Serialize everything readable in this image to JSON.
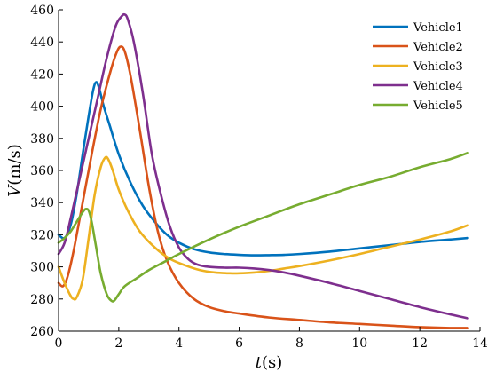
{
  "chart_data": {
    "type": "line",
    "xlabel_italic": "t",
    "xlabel_unit": "(s)",
    "ylabel_italic": "V",
    "ylabel_unit": "(m/s)",
    "xlim": [
      0,
      14
    ],
    "ylim": [
      260,
      460
    ],
    "xticks": [
      0,
      2,
      4,
      6,
      8,
      10,
      12,
      14
    ],
    "yticks": [
      260,
      280,
      300,
      320,
      340,
      360,
      380,
      400,
      420,
      440,
      460
    ],
    "grid": false,
    "legend_position": "top-right",
    "series": [
      {
        "name": "Vehicle1",
        "color": "#0072BD",
        "x": [
          0,
          0.2,
          0.4,
          0.6,
          0.8,
          1.0,
          1.15,
          1.25,
          1.35,
          1.5,
          1.7,
          2.0,
          2.4,
          2.8,
          3.2,
          3.6,
          4.0,
          4.5,
          5.0,
          5.5,
          6.0,
          6.5,
          7.0,
          7.5,
          8.0,
          9.0,
          10.0,
          11.0,
          12.0,
          13.0,
          13.6
        ],
        "y": [
          320,
          318,
          326,
          345,
          370,
          394,
          410,
          415,
          411,
          400,
          388,
          370,
          352,
          338,
          328,
          320,
          315,
          311,
          309,
          308,
          307.5,
          307.2,
          307.3,
          307.5,
          308,
          309.5,
          311.5,
          313.5,
          315.5,
          317,
          318
        ]
      },
      {
        "name": "Vehicle2",
        "color": "#D95319",
        "x": [
          0,
          0.15,
          0.3,
          0.5,
          0.8,
          1.1,
          1.4,
          1.7,
          1.9,
          2.05,
          2.2,
          2.4,
          2.7,
          3.0,
          3.3,
          3.6,
          4.0,
          4.5,
          5.0,
          5.5,
          6.0,
          7.0,
          8.0,
          9.0,
          10.0,
          11.0,
          12.0,
          13.0,
          13.6
        ],
        "y": [
          290,
          288,
          294,
          310,
          340,
          370,
          398,
          420,
          432,
          437,
          434,
          418,
          385,
          350,
          322,
          304,
          290,
          280,
          275,
          272.5,
          271,
          268.5,
          267,
          265.5,
          264.5,
          263.5,
          262.5,
          262,
          262
        ]
      },
      {
        "name": "Vehicle3",
        "color": "#EDB120",
        "x": [
          0,
          0.2,
          0.4,
          0.5,
          0.6,
          0.8,
          1.0,
          1.2,
          1.4,
          1.55,
          1.65,
          1.8,
          2.0,
          2.3,
          2.7,
          3.2,
          3.7,
          4.2,
          4.7,
          5.2,
          5.7,
          6.0,
          6.5,
          7.0,
          7.5,
          8.0,
          9.0,
          10.0,
          11.0,
          12.0,
          13.0,
          13.6
        ],
        "y": [
          300,
          290,
          282,
          280,
          281,
          292,
          318,
          345,
          362,
          368,
          367,
          360,
          348,
          335,
          322,
          312,
          305,
          301,
          298,
          296.5,
          296,
          296,
          296.5,
          297.5,
          299,
          300.5,
          304,
          308,
          312.5,
          317,
          322,
          326
        ]
      },
      {
        "name": "Vehicle4",
        "color": "#7E2F8E",
        "x": [
          0,
          0.2,
          0.4,
          0.7,
          1.0,
          1.3,
          1.6,
          1.9,
          2.1,
          2.2,
          2.3,
          2.5,
          2.8,
          3.1,
          3.4,
          3.7,
          4.0,
          4.3,
          4.6,
          5.0,
          5.5,
          6.0,
          6.5,
          7.0,
          7.5,
          8.0,
          9.0,
          10.0,
          11.0,
          12.0,
          13.0,
          13.6
        ],
        "y": [
          308,
          315,
          330,
          355,
          380,
          405,
          430,
          450,
          456,
          457,
          454,
          440,
          408,
          370,
          345,
          325,
          312,
          305,
          301.5,
          300,
          299.5,
          299.5,
          299,
          298,
          296.5,
          294.5,
          290,
          285,
          280,
          275,
          270.5,
          268
        ]
      },
      {
        "name": "Vehicle5",
        "color": "#77AC30",
        "x": [
          0,
          0.2,
          0.4,
          0.6,
          0.8,
          0.9,
          1.0,
          1.1,
          1.25,
          1.4,
          1.6,
          1.75,
          1.85,
          2.0,
          2.2,
          2.6,
          3.0,
          3.5,
          4.0,
          5.0,
          6.0,
          7.0,
          8.0,
          9.0,
          10.0,
          11.0,
          12.0,
          13.0,
          13.6
        ],
        "y": [
          315,
          318,
          322,
          328,
          334,
          336,
          335,
          328,
          312,
          296,
          283,
          279,
          279,
          283,
          288,
          293,
          298,
          303,
          308,
          317,
          325,
          332,
          339,
          345,
          351,
          356,
          362,
          367,
          371
        ]
      }
    ]
  }
}
